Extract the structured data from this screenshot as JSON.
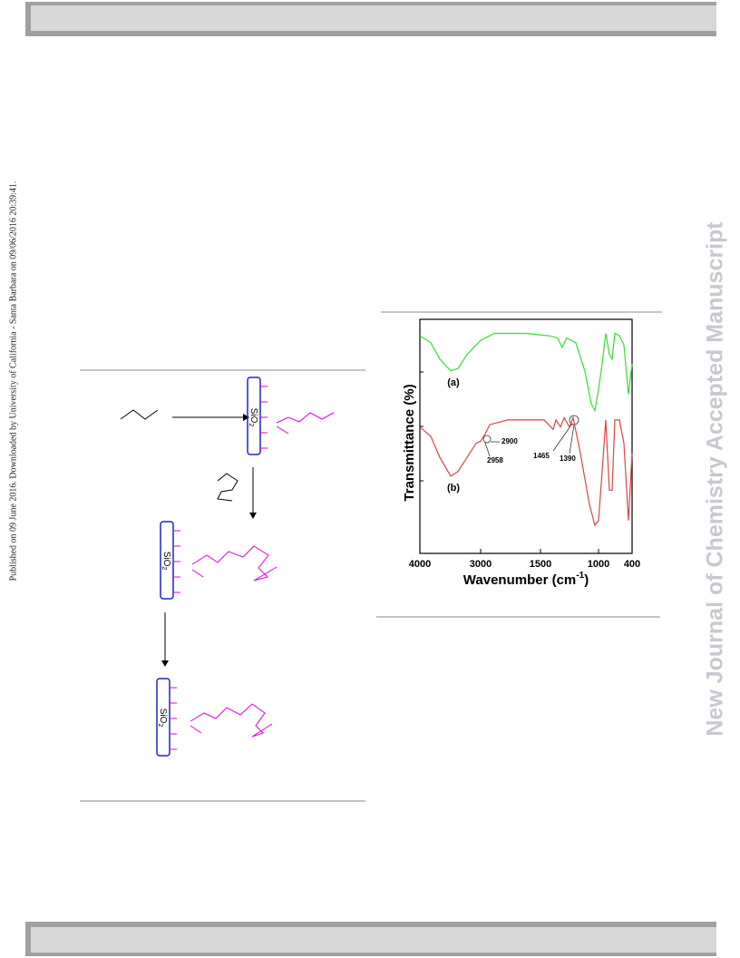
{
  "sidebar": {
    "published": "Published on 09 June 2016. Downloaded by University of California - Santa Barbara on 09/06/2016 20:39:41.",
    "journal": "New Journal of Chemistry Accepted Manuscript"
  },
  "scheme": {
    "support": "SiO",
    "support_sub": "2"
  },
  "chart_data": {
    "type": "line",
    "xlabel": "Wavenumber (cm",
    "xlabel_sup": "-1",
    "xlabel_end": ")",
    "ylabel": "Transmittance (%)",
    "xlim": [
      4000,
      400
    ],
    "xticks": [
      4000,
      3000,
      1500,
      1000,
      400
    ],
    "ylim": [
      0,
      100
    ],
    "annotations": [
      "(a)",
      "(b)",
      "2900",
      "2958",
      "1465",
      "1390"
    ],
    "series": [
      {
        "name": "(a)",
        "color": "#33dd33",
        "x": [
          4000,
          3821,
          3672,
          3493,
          3373,
          3224,
          3000,
          2659,
          1864,
          1430,
          1352,
          1313,
          1274,
          1196,
          1118,
          1063,
          1031,
          1000,
          935,
          870,
          806,
          757,
          708,
          627,
          546,
          465,
          400
        ],
        "values": [
          93,
          90,
          83,
          78,
          79,
          85,
          91,
          94,
          94,
          93,
          92,
          88,
          92,
          90,
          78,
          64,
          61,
          70,
          81,
          94,
          85,
          83,
          94,
          93,
          89,
          68,
          81
        ]
      },
      {
        "name": "(b)",
        "color": "#dd4444",
        "x": [
          4000,
          3821,
          3672,
          3493,
          3373,
          3224,
          3075,
          3000,
          2887,
          2773,
          2319,
          1469,
          1430,
          1391,
          1367,
          1328,
          1297,
          1250,
          1219,
          1157,
          1079,
          1031,
          1000,
          935,
          870,
          806,
          757,
          708,
          627,
          546,
          465,
          400
        ],
        "values": [
          54,
          50,
          41,
          33,
          35,
          41,
          47,
          48,
          51,
          55,
          57,
          57,
          55,
          53,
          57,
          54,
          58,
          54,
          58,
          43,
          21,
          12,
          14,
          35,
          57,
          27,
          27,
          57,
          57,
          47,
          14,
          43
        ]
      }
    ]
  }
}
